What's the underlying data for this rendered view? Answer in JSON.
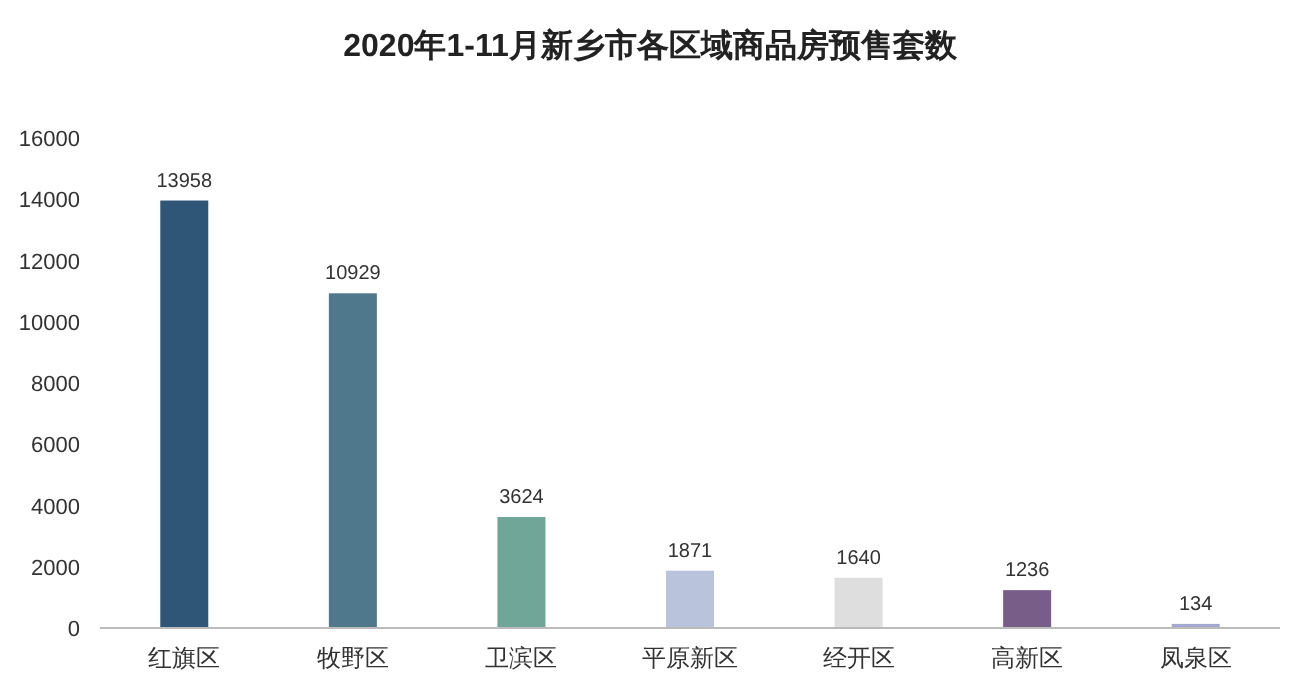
{
  "chart_data": {
    "type": "bar",
    "title": "2020年1-11月新乡市各区域商品房预售套数",
    "categories": [
      "红旗区",
      "牧野区",
      "卫滨区",
      "平原新区",
      "经开区",
      "高新区",
      "凤泉区"
    ],
    "values": [
      13958,
      10929,
      3624,
      1871,
      1640,
      1236,
      134
    ],
    "colors": [
      "#2f5577",
      "#50788c",
      "#6fa698",
      "#b9c3dc",
      "#dedede",
      "#775d88",
      "#a3a8d0"
    ],
    "ylim": [
      0,
      16000
    ],
    "yticks": [
      0,
      2000,
      4000,
      6000,
      8000,
      10000,
      12000,
      14000,
      16000
    ],
    "data_labels": true
  }
}
